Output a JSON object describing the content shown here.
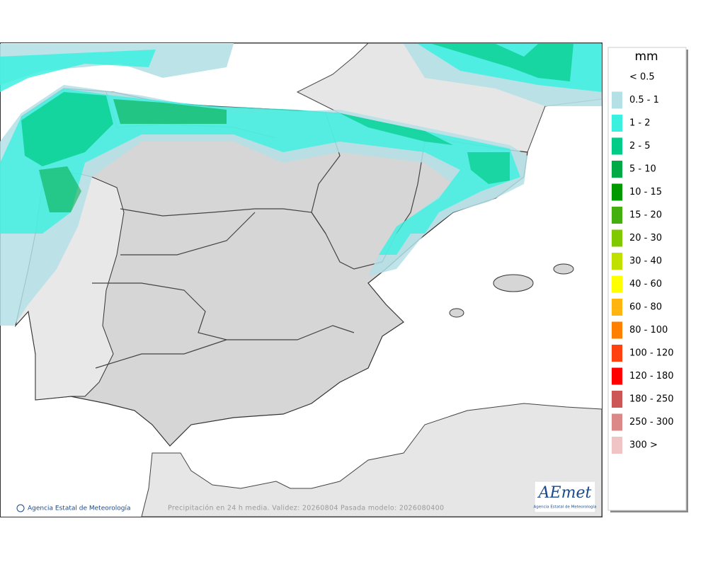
{
  "legend": {
    "title": "mm",
    "items": [
      {
        "label": "< 0.5",
        "color": "#ffffff"
      },
      {
        "label": "0.5 - 1",
        "color": "#b4e0e6"
      },
      {
        "label": "1 - 2",
        "color": "#3cf0e0"
      },
      {
        "label": "2 - 5",
        "color": "#00cc88"
      },
      {
        "label": "5 - 10",
        "color": "#00aa44"
      },
      {
        "label": "10 - 15",
        "color": "#009900"
      },
      {
        "label": "15 - 20",
        "color": "#44b010"
      },
      {
        "label": "20 - 30",
        "color": "#80c800"
      },
      {
        "label": "30 - 40",
        "color": "#c0e000"
      },
      {
        "label": "40 - 60",
        "color": "#ffff00"
      },
      {
        "label": "60 - 80",
        "color": "#ffb410"
      },
      {
        "label": "80 - 100",
        "color": "#ff8000"
      },
      {
        "label": "100 - 120",
        "color": "#ff4010"
      },
      {
        "label": "120 - 180",
        "color": "#ff0000"
      },
      {
        "label": "180 - 250",
        "color": "#cc5555"
      },
      {
        "label": "250 - 300",
        "color": "#dd8888"
      },
      {
        "label": "300 >",
        "color": "#f0c4c4"
      }
    ]
  },
  "footer": {
    "credit": "Agencia Estatal de Meteorología",
    "caption": "Precipitación en 24 h media. Validez: 20260804 Pasada modelo: 2026080400"
  },
  "logo": {
    "name": "AEmet",
    "subtitle": "Agencia Estatal de Meteorología"
  }
}
